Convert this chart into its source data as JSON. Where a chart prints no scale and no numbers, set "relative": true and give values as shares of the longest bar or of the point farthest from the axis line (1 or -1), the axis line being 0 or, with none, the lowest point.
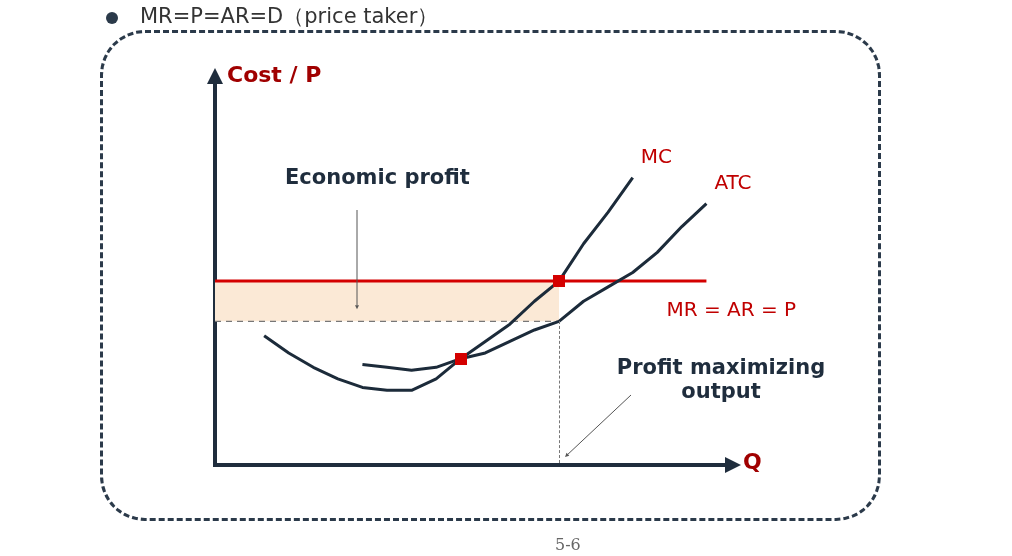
{
  "chart_data": {
    "type": "line",
    "title": "MR=P=AR=D（price taker）",
    "xlabel": "Q",
    "ylabel": "Cost / P",
    "relative": true,
    "legend": false,
    "grid": false,
    "categories": [
      null,
      null,
      null,
      null,
      null,
      null,
      null,
      null,
      null,
      null,
      null,
      null,
      null,
      null,
      null,
      null,
      null,
      null,
      null,
      null,
      null,
      null
    ],
    "series": [
      {
        "name": "MC",
        "color": "#1c2b3a",
        "values": [
          null,
          null,
          0.45,
          0.39,
          0.34,
          0.3,
          0.27,
          0.26,
          0.26,
          0.3,
          0.37,
          0.43,
          0.49,
          0.57,
          0.64,
          0.77,
          0.88,
          1,
          null,
          null,
          null,
          null
        ]
      },
      {
        "name": "ATC",
        "color": "#1c2b3a",
        "values": [
          null,
          null,
          null,
          null,
          null,
          null,
          0.35,
          0.34,
          0.33,
          0.34,
          0.37,
          0.39,
          0.43,
          0.47,
          0.5,
          0.57,
          0.62,
          0.67,
          0.74,
          0.83,
          0.91,
          null
        ]
      },
      {
        "name": "MR = AR = P",
        "color": "#d40000",
        "values": [
          0.64,
          0.64,
          0.64,
          0.64,
          0.64,
          0.64,
          0.64,
          0.64,
          0.64,
          0.64,
          0.64,
          0.64,
          0.64,
          0.64,
          0.64,
          0.64,
          0.64,
          0.64,
          0.64,
          0.64,
          0.64,
          null
        ]
      },
      {
        "color": "#777777",
        "line_style": "dashed",
        "values": [
          0.5,
          0.5,
          0.5,
          0.5,
          0.5,
          0.5,
          0.5,
          0.5,
          0.5,
          0.5,
          0.5,
          0.5,
          0.5,
          0.5,
          0.5,
          null,
          null,
          null,
          null,
          null,
          null,
          null
        ]
      },
      {
        "type": "area",
        "color": "#fbe9d6",
        "values": [
          0.64,
          0.64,
          0.64,
          0.64,
          0.64,
          0.64,
          0.64,
          0.64,
          0.64,
          0.64,
          0.64,
          0.64,
          0.64,
          0.64,
          0.64,
          null,
          null,
          null,
          null,
          null,
          null,
          null
        ]
      }
    ],
    "annotations": [
      "Economic profit",
      "Profit maximizing output",
      "5-6"
    ]
  }
}
